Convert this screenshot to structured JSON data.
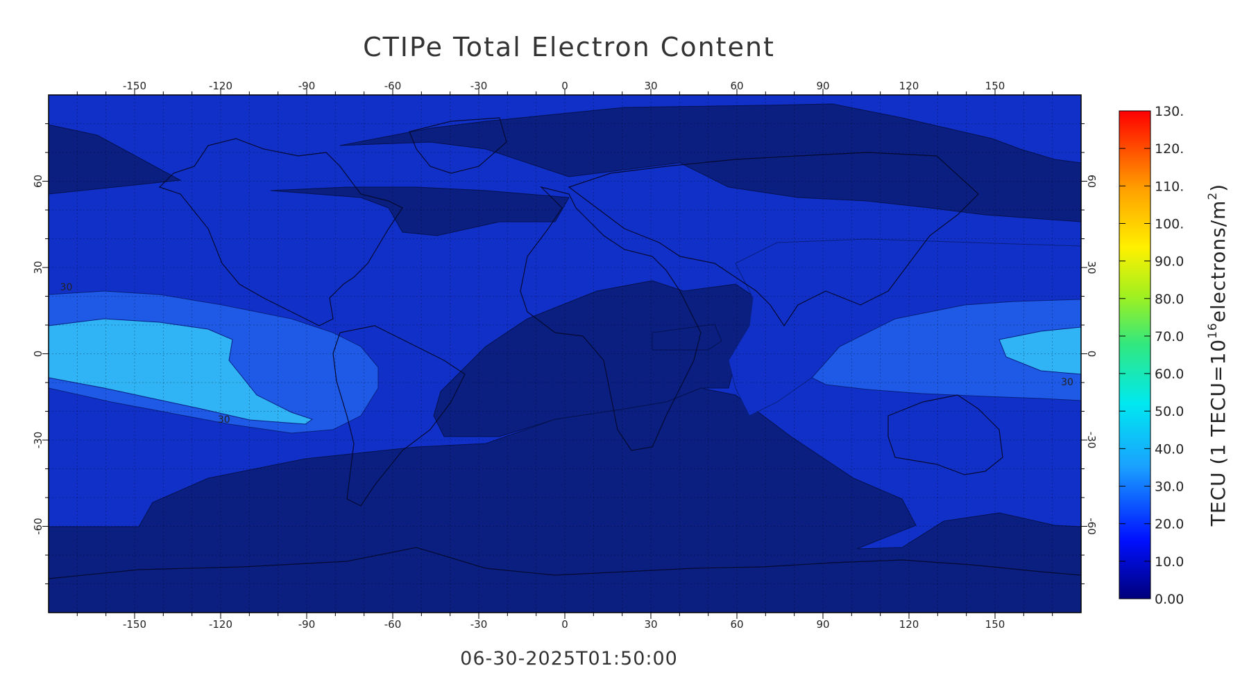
{
  "title": "CTIPe Total Electron Content",
  "timestamp": "06-30-2025T01:50:00",
  "map": {
    "lon_ticks": [
      "-150",
      "-120",
      "-90",
      "-60",
      "-30",
      "0",
      "30",
      "60",
      "90",
      "120",
      "150"
    ],
    "lon_values": [
      -150,
      -120,
      -90,
      -60,
      -30,
      0,
      30,
      60,
      90,
      120,
      150
    ],
    "lat_ticks": [
      "60",
      "30",
      "0",
      "-30",
      "-60"
    ],
    "lat_values": [
      60,
      30,
      0,
      -30,
      -60
    ],
    "lon_range": [
      -180,
      180
    ],
    "lat_range": [
      -90,
      90
    ],
    "grid": true,
    "contour_labels": [
      {
        "text": "30",
        "lon": -176,
        "lat": 22
      },
      {
        "text": "30",
        "lon": -121,
        "lat": -24
      },
      {
        "text": "30",
        "lon": 173,
        "lat": -11
      }
    ]
  },
  "colorbar": {
    "label_main": "TECU (1 TECU=10",
    "label_exp": "16",
    "label_unit": "electrons/m",
    "label_unit_exp": "2",
    "label_close": ")",
    "ticks": [
      "130.",
      "120.",
      "110.",
      "100.",
      "90.0",
      "80.0",
      "70.0",
      "60.0",
      "50.0",
      "40.0",
      "30.0",
      "20.0",
      "10.0",
      "0.00"
    ],
    "min": 0,
    "max": 130
  },
  "colors": {
    "level_0_10": "#0a1f80",
    "level_10_20": "#1030c8",
    "level_20_30": "#1e5ae6",
    "level_30_40": "#2a8ef0",
    "level_40_50": "#30b4f5"
  }
}
